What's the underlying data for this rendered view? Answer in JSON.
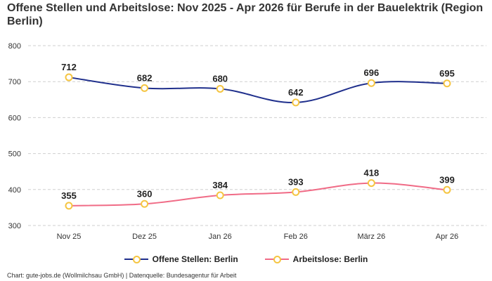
{
  "chart_data": {
    "type": "line",
    "title": "Offene Stellen und Arbeitslose: Nov 2025 - Apr 2026 für Berufe in der Bauelektrik (Region Berlin)",
    "categories": [
      "Nov 25",
      "Dez 25",
      "Jan 26",
      "Feb 26",
      "März 26",
      "Apr 26"
    ],
    "ylim": [
      300,
      800
    ],
    "yticks": [
      300,
      400,
      500,
      600,
      700,
      800
    ],
    "grid": true,
    "legend_position": "bottom",
    "series": [
      {
        "name": "Offene Stellen: Berlin",
        "values": [
          712,
          682,
          680,
          642,
          696,
          695
        ],
        "color": "#1f2f8c"
      },
      {
        "name": "Arbeitslose: Berlin",
        "values": [
          355,
          360,
          384,
          393,
          418,
          399
        ],
        "color": "#f06b86"
      }
    ],
    "marker_color": "#f5c542"
  },
  "footer": "Chart: gute-jobs.de (Wollmilchsau GmbH) | Datenquelle: Bundesagentur für Arbeit"
}
